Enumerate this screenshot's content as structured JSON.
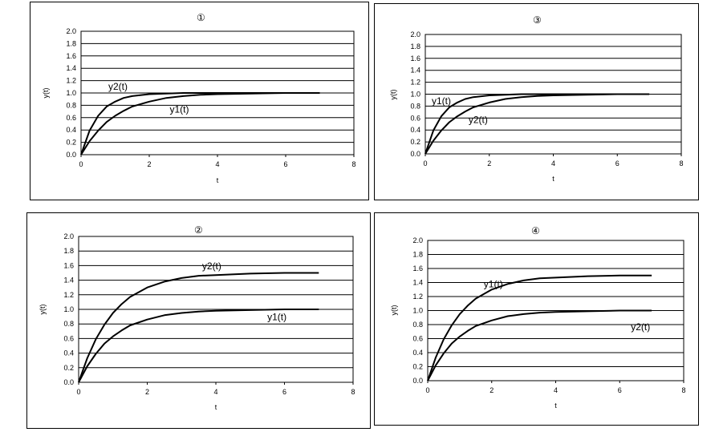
{
  "chart_data": [
    {
      "id": "p1",
      "type": "line",
      "title": "①",
      "xlabel": "t",
      "ylabel": "y(t)",
      "xlim": [
        0,
        8
      ],
      "ylim": [
        0,
        2.0
      ],
      "xticks": [
        "0",
        "2",
        "4",
        "6",
        "8"
      ],
      "yticks": [
        "0.0",
        "0.2",
        "0.4",
        "0.6",
        "0.8",
        "1.0",
        "1.2",
        "1.4",
        "1.6",
        "1.8",
        "2.0"
      ],
      "grid": "horizontal",
      "series": [
        {
          "name": "y1(t)",
          "x": [
            0,
            0.25,
            0.5,
            0.75,
            1,
            1.25,
            1.5,
            2,
            2.5,
            3,
            3.5,
            4,
            5,
            6,
            7
          ],
          "y": [
            0,
            0.22,
            0.39,
            0.53,
            0.63,
            0.71,
            0.78,
            0.86,
            0.92,
            0.95,
            0.97,
            0.98,
            0.99,
            1.0,
            1.0
          ]
        },
        {
          "name": "y2(t)",
          "x": [
            0,
            0.25,
            0.5,
            0.75,
            1,
            1.25,
            1.5,
            2,
            2.5,
            3,
            3.5,
            4,
            5,
            6,
            7
          ],
          "y": [
            0,
            0.39,
            0.63,
            0.78,
            0.86,
            0.92,
            0.95,
            0.98,
            0.99,
            1.0,
            1.0,
            1.0,
            1.0,
            1.0,
            1.0
          ]
        }
      ],
      "annotations": [
        {
          "text": "y2(t)",
          "x": 0.8,
          "y": 1.05
        },
        {
          "text": "y1(t)",
          "x": 2.6,
          "y": 0.68
        }
      ]
    },
    {
      "id": "p3",
      "type": "line",
      "title": "③",
      "xlabel": "t",
      "ylabel": "y(t)",
      "xlim": [
        0,
        8
      ],
      "ylim": [
        0,
        2.0
      ],
      "xticks": [
        "0",
        "2",
        "4",
        "6",
        "8"
      ],
      "yticks": [
        "0.0",
        "0.2",
        "0.4",
        "0.6",
        "0.8",
        "1.0",
        "1.2",
        "1.4",
        "1.6",
        "1.8",
        "2.0"
      ],
      "grid": "horizontal",
      "series": [
        {
          "name": "y1(t)",
          "x": [
            0,
            0.25,
            0.5,
            0.75,
            1,
            1.25,
            1.5,
            2,
            2.5,
            3,
            3.5,
            4,
            5,
            6,
            7
          ],
          "y": [
            0,
            0.39,
            0.63,
            0.78,
            0.86,
            0.92,
            0.95,
            0.98,
            0.99,
            1.0,
            1.0,
            1.0,
            1.0,
            1.0,
            1.0
          ]
        },
        {
          "name": "y2(t)",
          "x": [
            0,
            0.25,
            0.5,
            0.75,
            1,
            1.25,
            1.5,
            2,
            2.5,
            3,
            3.5,
            4,
            5,
            6,
            7
          ],
          "y": [
            0,
            0.22,
            0.39,
            0.53,
            0.63,
            0.71,
            0.78,
            0.86,
            0.92,
            0.95,
            0.97,
            0.98,
            0.99,
            1.0,
            1.0
          ]
        }
      ],
      "annotations": [
        {
          "text": "y1(t)",
          "x": 0.2,
          "y": 0.83
        },
        {
          "text": "y2(t)",
          "x": 1.35,
          "y": 0.52
        }
      ]
    },
    {
      "id": "p2",
      "type": "line",
      "title": "②",
      "xlabel": "t",
      "ylabel": "y(t)",
      "xlim": [
        0,
        8
      ],
      "ylim": [
        0,
        2.0
      ],
      "xticks": [
        "0",
        "2",
        "4",
        "6",
        "8"
      ],
      "yticks": [
        "0.0",
        "0.2",
        "0.4",
        "0.6",
        "0.8",
        "1.0",
        "1.2",
        "1.4",
        "1.6",
        "1.8",
        "2.0"
      ],
      "grid": "horizontal",
      "series": [
        {
          "name": "y1(t)",
          "x": [
            0,
            0.25,
            0.5,
            0.75,
            1,
            1.25,
            1.5,
            2,
            2.5,
            3,
            3.5,
            4,
            5,
            6,
            7
          ],
          "y": [
            0,
            0.22,
            0.39,
            0.53,
            0.63,
            0.71,
            0.78,
            0.86,
            0.92,
            0.95,
            0.97,
            0.98,
            0.99,
            1.0,
            1.0
          ]
        },
        {
          "name": "y2(t)",
          "x": [
            0,
            0.25,
            0.5,
            0.75,
            1,
            1.25,
            1.5,
            2,
            2.5,
            3,
            3.5,
            4,
            5,
            6,
            7
          ],
          "y": [
            0,
            0.33,
            0.59,
            0.79,
            0.95,
            1.07,
            1.17,
            1.3,
            1.38,
            1.43,
            1.46,
            1.47,
            1.49,
            1.5,
            1.5
          ]
        }
      ],
      "annotations": [
        {
          "text": "y2(t)",
          "x": 3.6,
          "y": 1.55
        },
        {
          "text": "y1(t)",
          "x": 5.5,
          "y": 0.85
        }
      ]
    },
    {
      "id": "p4",
      "type": "line",
      "title": "④",
      "xlabel": "t",
      "ylabel": "y(t)",
      "xlim": [
        0,
        8
      ],
      "ylim": [
        0,
        2.0
      ],
      "xticks": [
        "0",
        "2",
        "4",
        "6",
        "8"
      ],
      "yticks": [
        "0.0",
        "0.2",
        "0.4",
        "0.6",
        "0.8",
        "1.0",
        "1.2",
        "1.4",
        "1.6",
        "1.8",
        "2.0"
      ],
      "grid": "horizontal",
      "series": [
        {
          "name": "y1(t)",
          "x": [
            0,
            0.25,
            0.5,
            0.75,
            1,
            1.25,
            1.5,
            2,
            2.5,
            3,
            3.5,
            4,
            5,
            6,
            7
          ],
          "y": [
            0,
            0.33,
            0.59,
            0.79,
            0.95,
            1.07,
            1.17,
            1.3,
            1.38,
            1.43,
            1.46,
            1.47,
            1.49,
            1.5,
            1.5
          ]
        },
        {
          "name": "y2(t)",
          "x": [
            0,
            0.25,
            0.5,
            0.75,
            1,
            1.25,
            1.5,
            2,
            2.5,
            3,
            3.5,
            4,
            5,
            6,
            7
          ],
          "y": [
            0,
            0.22,
            0.39,
            0.53,
            0.63,
            0.71,
            0.78,
            0.86,
            0.92,
            0.95,
            0.97,
            0.98,
            0.99,
            1.0,
            1.0
          ]
        }
      ],
      "annotations": [
        {
          "text": "y1(t)",
          "x": 1.75,
          "y": 1.33
        },
        {
          "text": "y2(t)",
          "x": 6.35,
          "y": 0.72
        }
      ]
    }
  ]
}
